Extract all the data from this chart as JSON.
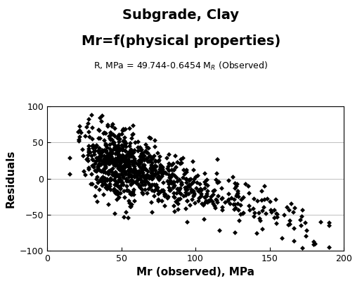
{
  "title_line1": "Subgrade, Clay",
  "title_line2": "Mr=f(physical properties)",
  "xlabel": "Mr (observed), MPa",
  "ylabel": "Residuals",
  "xlim": [
    0,
    200
  ],
  "ylim": [
    -100,
    100
  ],
  "xticks": [
    0,
    50,
    100,
    150,
    200
  ],
  "yticks": [
    -100,
    -50,
    0,
    50,
    100
  ],
  "marker_color": "black",
  "marker": "D",
  "marker_size": 3.5,
  "bg_color": "white",
  "plot_bg_color": "white",
  "seed": 42,
  "intercept": 49.744,
  "slope": -0.6454,
  "title_fontsize": 14,
  "subtitle_fontsize": 9,
  "axis_label_fontsize": 11,
  "tick_fontsize": 9
}
